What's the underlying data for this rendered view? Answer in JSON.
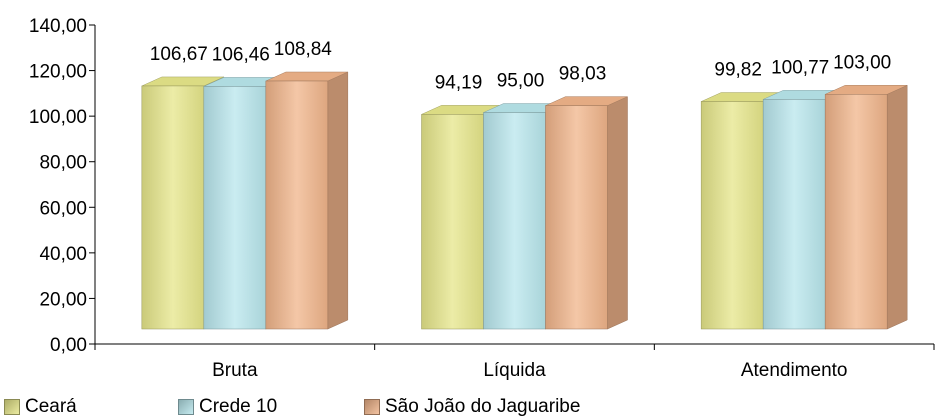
{
  "chart_data": {
    "type": "bar",
    "categories": [
      "Bruta",
      "Líquida",
      "Atendimento"
    ],
    "series": [
      {
        "name": "Ceará",
        "values": [
          106.67,
          94.19,
          99.82
        ],
        "labels": [
          "106,67",
          "94,19",
          "99,82"
        ],
        "color": "#e6e68a"
      },
      {
        "name": "Crede 10",
        "values": [
          106.46,
          95.0,
          100.77
        ],
        "labels": [
          "106,46",
          "95,00",
          "100,77"
        ],
        "color": "#b8e6ec"
      },
      {
        "name": "São João do Jaguaribe",
        "values": [
          108.84,
          98.03,
          103.0
        ],
        "labels": [
          "108,84",
          "98,03",
          "103,00"
        ],
        "color": "#f0b48a"
      }
    ],
    "ylim": [
      0,
      140
    ],
    "yticks": [
      "0,00",
      "20,00",
      "40,00",
      "60,00",
      "80,00",
      "100,00",
      "120,00",
      "140,00"
    ],
    "legend_position": "bottom",
    "grid": false,
    "style": "3d-column"
  }
}
